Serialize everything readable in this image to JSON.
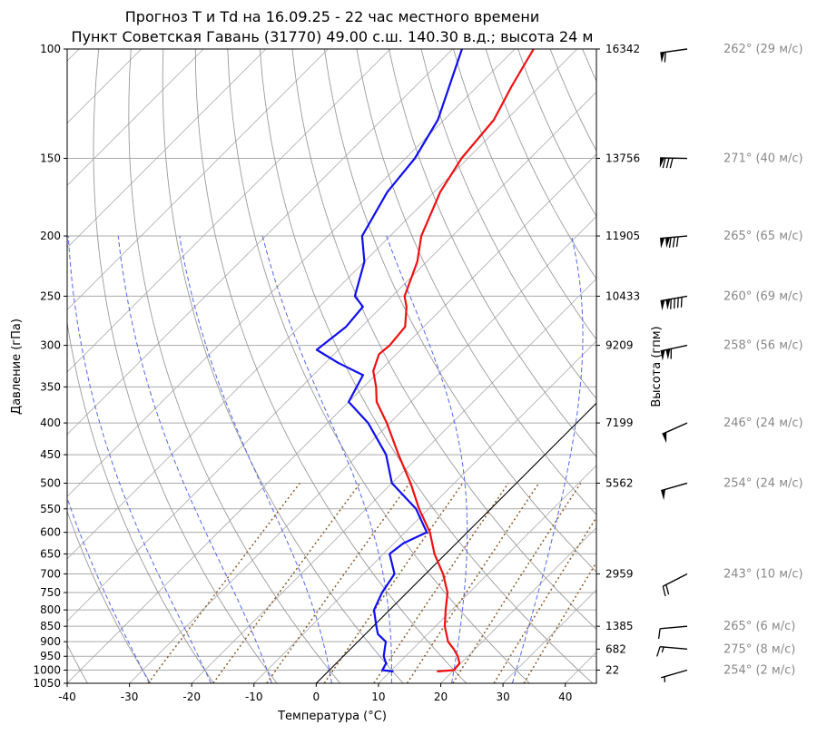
{
  "title_line1": "Прогноз T и Td на 16.09.25 - 22 час местного времени",
  "title_line2": "Пункт Советская Гавань (31770) 49.00 с.ш. 140.30 в.д.; высота 24 м",
  "chart_data": {
    "type": "line",
    "chart_kind": "skew-T log-P",
    "xlabel": "Температура (°C)",
    "ylabel": "Давление (гПа)",
    "ylabel_right": "Высота (гпм)",
    "xlim": [
      -40,
      45
    ],
    "ylim": [
      1050,
      100
    ],
    "y_scale": "log",
    "x_ticks": [
      -40,
      -30,
      -20,
      -10,
      0,
      10,
      20,
      30,
      40
    ],
    "pressure_ticks": [
      100,
      150,
      200,
      250,
      300,
      350,
      400,
      450,
      500,
      550,
      600,
      650,
      700,
      750,
      800,
      850,
      900,
      950,
      1000,
      1050
    ],
    "heights": [
      {
        "p": 100,
        "label": "16342"
      },
      {
        "p": 150,
        "label": "13756"
      },
      {
        "p": 200,
        "label": "11905"
      },
      {
        "p": 250,
        "label": "10433"
      },
      {
        "p": 300,
        "label": "9209"
      },
      {
        "p": 400,
        "label": "7199"
      },
      {
        "p": 500,
        "label": "5562"
      },
      {
        "p": 700,
        "label": "2959"
      },
      {
        "p": 850,
        "label": "1385"
      },
      {
        "p": 925,
        "label": "682"
      },
      {
        "p": 1000,
        "label": "22"
      }
    ],
    "temperature": {
      "color": "#ee1111",
      "points": [
        [
          1005,
          17.5
        ],
        [
          1000,
          20.0
        ],
        [
          975,
          19.8
        ],
        [
          950,
          18.4
        ],
        [
          925,
          16.6
        ],
        [
          900,
          14.5
        ],
        [
          850,
          11.5
        ],
        [
          800,
          9.0
        ],
        [
          750,
          6.5
        ],
        [
          700,
          2.8
        ],
        [
          650,
          -1.8
        ],
        [
          600,
          -6.0
        ],
        [
          550,
          -11.5
        ],
        [
          500,
          -17.0
        ],
        [
          450,
          -23.5
        ],
        [
          400,
          -30.5
        ],
        [
          370,
          -35.5
        ],
        [
          350,
          -38.0
        ],
        [
          330,
          -41.0
        ],
        [
          310,
          -42.8
        ],
        [
          300,
          -42.5
        ],
        [
          280,
          -43.0
        ],
        [
          260,
          -46.0
        ],
        [
          250,
          -48.0
        ],
        [
          220,
          -51.5
        ],
        [
          200,
          -55.0
        ],
        [
          170,
          -59.0
        ],
        [
          150,
          -61.0
        ],
        [
          130,
          -62.0
        ],
        [
          115,
          -64.5
        ],
        [
          100,
          -67.0
        ]
      ]
    },
    "dewpoint": {
      "color": "#0f0fee",
      "points": [
        [
          1005,
          10.5
        ],
        [
          1000,
          8.5
        ],
        [
          975,
          8.0
        ],
        [
          950,
          6.5
        ],
        [
          925,
          5.5
        ],
        [
          900,
          4.5
        ],
        [
          875,
          2.0
        ],
        [
          850,
          0.5
        ],
        [
          800,
          -2.5
        ],
        [
          750,
          -4.0
        ],
        [
          700,
          -5.0
        ],
        [
          650,
          -9.0
        ],
        [
          625,
          -8.5
        ],
        [
          600,
          -6.5
        ],
        [
          550,
          -12.0
        ],
        [
          500,
          -20.0
        ],
        [
          450,
          -25.5
        ],
        [
          400,
          -33.5
        ],
        [
          370,
          -40.0
        ],
        [
          335,
          -42.0
        ],
        [
          320,
          -48.0
        ],
        [
          305,
          -53.5
        ],
        [
          280,
          -52.5
        ],
        [
          260,
          -53.0
        ],
        [
          250,
          -56.0
        ],
        [
          220,
          -60.0
        ],
        [
          200,
          -64.5
        ],
        [
          170,
          -67.5
        ],
        [
          150,
          -68.5
        ],
        [
          130,
          -71.0
        ],
        [
          115,
          -74.5
        ],
        [
          100,
          -78.5
        ]
      ]
    },
    "dry_adiabats_theta_c": [
      -70,
      -60,
      -50,
      -40,
      -30,
      -20,
      -10,
      0,
      10,
      20,
      30,
      40,
      50,
      60,
      70,
      80,
      90,
      100,
      110,
      120,
      130,
      140,
      150,
      160
    ],
    "moist_adiabats_c": [
      -30,
      -20,
      -10,
      0,
      10,
      20,
      30
    ],
    "mixing_ratio_g_kg": [
      0.4,
      1,
      2,
      4,
      7,
      10,
      16,
      24,
      32
    ],
    "isotherm_highlight_c": 0,
    "wind": [
      {
        "p": 100,
        "dir": 262,
        "speed": 29,
        "label": "262° (29 м/с)"
      },
      {
        "p": 150,
        "dir": 271,
        "speed": 40,
        "label": "271° (40 м/с)"
      },
      {
        "p": 200,
        "dir": 265,
        "speed": 65,
        "label": "265° (65 м/с)"
      },
      {
        "p": 250,
        "dir": 260,
        "speed": 69,
        "label": "260° (69 м/с)"
      },
      {
        "p": 300,
        "dir": 258,
        "speed": 56,
        "label": "258° (56 м/с)"
      },
      {
        "p": 400,
        "dir": 246,
        "speed": 24,
        "label": "246° (24 м/с)"
      },
      {
        "p": 500,
        "dir": 254,
        "speed": 24,
        "label": "254° (24 м/с)"
      },
      {
        "p": 700,
        "dir": 243,
        "speed": 10,
        "label": "243° (10 м/с)"
      },
      {
        "p": 850,
        "dir": 265,
        "speed": 6,
        "label": "265° (6 м/с)"
      },
      {
        "p": 925,
        "dir": 275,
        "speed": 8,
        "label": "275° (8 м/с)"
      },
      {
        "p": 1000,
        "dir": 254,
        "speed": 2,
        "label": "254° (2 м/с)"
      }
    ]
  }
}
